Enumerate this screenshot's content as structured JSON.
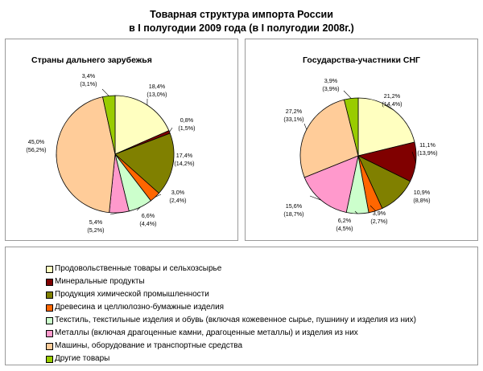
{
  "title": {
    "line1": "Товарная структура импорта России",
    "line2": "в I полугодии 2009 года (в I полугодии 2008г.)"
  },
  "legend": {
    "items": [
      {
        "label": "Продовольственные товары и сельхозсырье",
        "color": "#ffffc0"
      },
      {
        "label": "Минеральные продукты",
        "color": "#800000"
      },
      {
        "label": "Продукция химической промышленности",
        "color": "#808000"
      },
      {
        "label": "Древесина и целлюлозно-бумажные изделия",
        "color": "#ff6600"
      },
      {
        "label": "Текстиль, текстильные изделия и обувь (включая кожевенное сырье, пушнину и изделия из них)",
        "color": "#ccffcc"
      },
      {
        "label": "Металлы (включая драгоценные камни, драгоценные металлы) и изделия из них",
        "color": "#ff99cc"
      },
      {
        "label": "Машины, оборудование и транспортные средства",
        "color": "#ffcc99"
      },
      {
        "label": "Другие товары",
        "color": "#99cc00"
      }
    ]
  },
  "chart_data": [
    {
      "type": "pie",
      "title": "Страны дальнего зарубежья",
      "categories": [
        "Продовольственные товары и сельхозсырье",
        "Минеральные продукты",
        "Продукция химической промышленности",
        "Древесина и целлюлозно-бумажные изделия",
        "Текстиль, текстильные изделия и обувь (включая кожевенное сырье, пушнину и изделия из них)",
        "Металлы (включая драгоценные камни, драгоценные металлы) и изделия из них",
        "Машины, оборудование и транспортные средства",
        "Другие товары"
      ],
      "values": [
        18.4,
        0.8,
        17.4,
        3.0,
        6.6,
        5.4,
        45.0,
        3.4
      ],
      "values_2008": [
        13.0,
        1.5,
        14.2,
        2.4,
        4.4,
        5.2,
        56.2,
        3.1
      ],
      "labels": [
        [
          "18,4%",
          "(13,0%)"
        ],
        [
          "0,8%",
          "(1,5%)"
        ],
        [
          "17,4%",
          "(14,2%)"
        ],
        [
          "3,0%",
          "(2,4%)"
        ],
        [
          "6,6%",
          "(4,4%)"
        ],
        [
          "5,4%",
          "(5,2%)"
        ],
        [
          "45,0%",
          "(56,2%)"
        ],
        [
          "3,4%",
          "(3,1%)"
        ]
      ]
    },
    {
      "type": "pie",
      "title": "Государства-участники СНГ",
      "categories": [
        "Продовольственные товары и сельхозсырье",
        "Минеральные продукты",
        "Продукция химической промышленности",
        "Древесина и целлюлозно-бумажные изделия",
        "Текстиль, текстильные изделия и обувь (включая кожевенное сырье, пушнину и изделия из них)",
        "Металлы (включая драгоценные камни, драгоценные металлы) и изделия из них",
        "Машины, оборудование и транспортные средства",
        "Другие товары"
      ],
      "values": [
        21.2,
        11.1,
        10.9,
        3.9,
        6.2,
        15.6,
        27.2,
        3.9
      ],
      "values_2008": [
        14.4,
        13.9,
        8.8,
        2.7,
        4.5,
        18.7,
        33.1,
        3.9
      ],
      "labels": [
        [
          "21,2%",
          "(14,4%)"
        ],
        [
          "11,1%",
          "(13,9%)"
        ],
        [
          "10,9%",
          "(8,8%)"
        ],
        [
          "3,9%",
          "(2,7%)"
        ],
        [
          "6,2%",
          "(4,5%)"
        ],
        [
          "15,6%",
          "(18,7%)"
        ],
        [
          "27,2%",
          "(33,1%)"
        ],
        [
          "3,9%",
          "(3,9%)"
        ]
      ]
    }
  ]
}
